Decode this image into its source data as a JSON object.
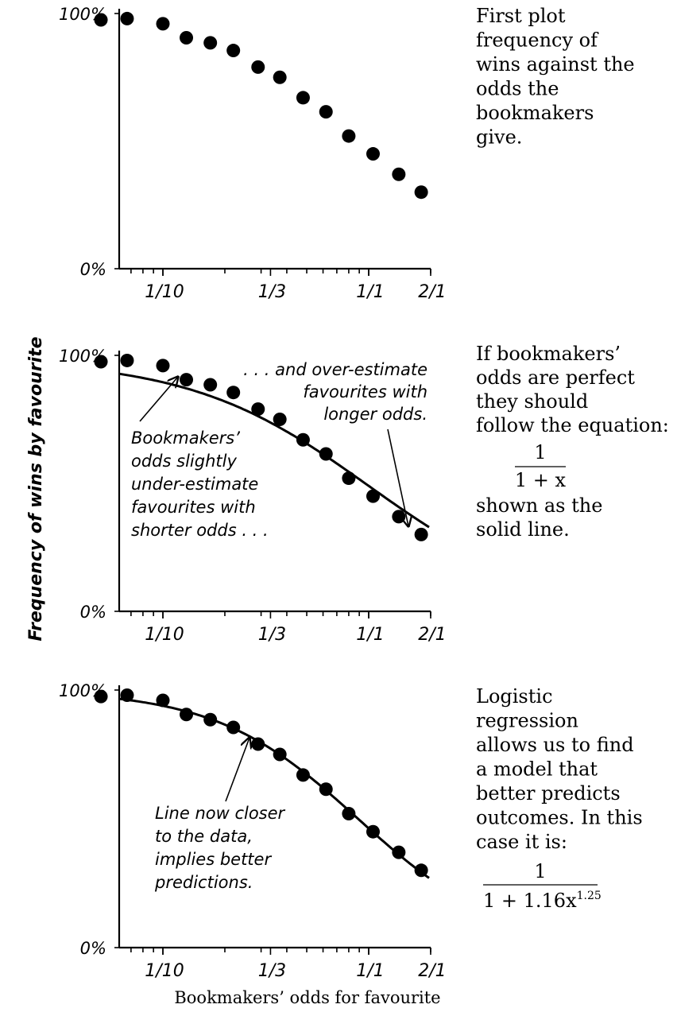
{
  "chart_data": [
    {
      "type": "scatter",
      "x_scale": "log",
      "xticks": [
        "1/10",
        "1/3",
        "1/1",
        "2/1"
      ],
      "yticks": [
        "100%",
        "0%"
      ],
      "ylim": [
        0,
        1
      ],
      "series": [
        {
          "x": [
            0.05,
            0.067,
            0.1,
            0.13,
            0.17,
            0.22,
            0.29,
            0.37,
            0.48,
            0.62,
            0.8,
            1.05,
            1.4,
            1.8
          ],
          "y": [
            0.975,
            0.98,
            0.96,
            0.905,
            0.885,
            0.855,
            0.79,
            0.75,
            0.67,
            0.615,
            0.52,
            0.45,
            0.37,
            0.3
          ]
        }
      ],
      "side_note": "First plot frequency of wins against the odds the bookmakers give."
    },
    {
      "type": "scatter",
      "x_scale": "log",
      "xticks": [
        "1/10",
        "1/3",
        "1/1",
        "2/1"
      ],
      "yticks": [
        "100%",
        "0%"
      ],
      "ylabel": "Frequency of wins by favourite",
      "ylim": [
        0,
        1
      ],
      "series": [
        {
          "x": [
            0.05,
            0.067,
            0.1,
            0.13,
            0.17,
            0.22,
            0.29,
            0.37,
            0.48,
            0.62,
            0.8,
            1.05,
            1.4,
            1.8
          ],
          "y": [
            0.975,
            0.98,
            0.96,
            0.905,
            0.885,
            0.855,
            0.79,
            0.75,
            0.67,
            0.615,
            0.52,
            0.45,
            0.37,
            0.3
          ]
        }
      ],
      "fit_curve": {
        "equation": "1/(1+x)"
      },
      "annotations": [
        {
          "lines": [
            "Bookmakers’",
            "odds slightly",
            "under-estimate",
            "favourites with",
            "shorter odds . . ."
          ]
        },
        {
          "lines": [
            ". . . and over-estimate",
            "favourites with",
            "longer odds."
          ]
        }
      ],
      "side_note_lines": [
        "If bookmakers’",
        "odds are perfect",
        "they should",
        "follow the equation:"
      ],
      "formula": {
        "numerator": "1",
        "denominator": "1 + x"
      },
      "side_note_after_lines": [
        "shown as the",
        "solid line."
      ]
    },
    {
      "type": "scatter",
      "x_scale": "log",
      "xticks": [
        "1/10",
        "1/3",
        "1/1",
        "2/1"
      ],
      "yticks": [
        "100%",
        "0%"
      ],
      "xlabel": "Bookmakers’ odds for favourite",
      "ylim": [
        0,
        1
      ],
      "series": [
        {
          "x": [
            0.05,
            0.067,
            0.1,
            0.13,
            0.17,
            0.22,
            0.29,
            0.37,
            0.48,
            0.62,
            0.8,
            1.05,
            1.4,
            1.8
          ],
          "y": [
            0.975,
            0.98,
            0.96,
            0.905,
            0.885,
            0.855,
            0.79,
            0.75,
            0.67,
            0.615,
            0.52,
            0.45,
            0.37,
            0.3
          ]
        }
      ],
      "fit_curve": {
        "equation": "1/(1+1.16x^1.25)"
      },
      "annotations": [
        {
          "lines": [
            "Line now closer",
            "to the data,",
            "implies better",
            "predictions."
          ]
        }
      ],
      "side_note_lines": [
        "Logistic",
        "regression",
        "allows us to find",
        "a model that",
        "better predicts",
        "outcomes. In this",
        "case it is:"
      ],
      "formula": {
        "numerator": "1",
        "denominator": "1 + 1.16x",
        "exponent": "1.25"
      }
    }
  ]
}
